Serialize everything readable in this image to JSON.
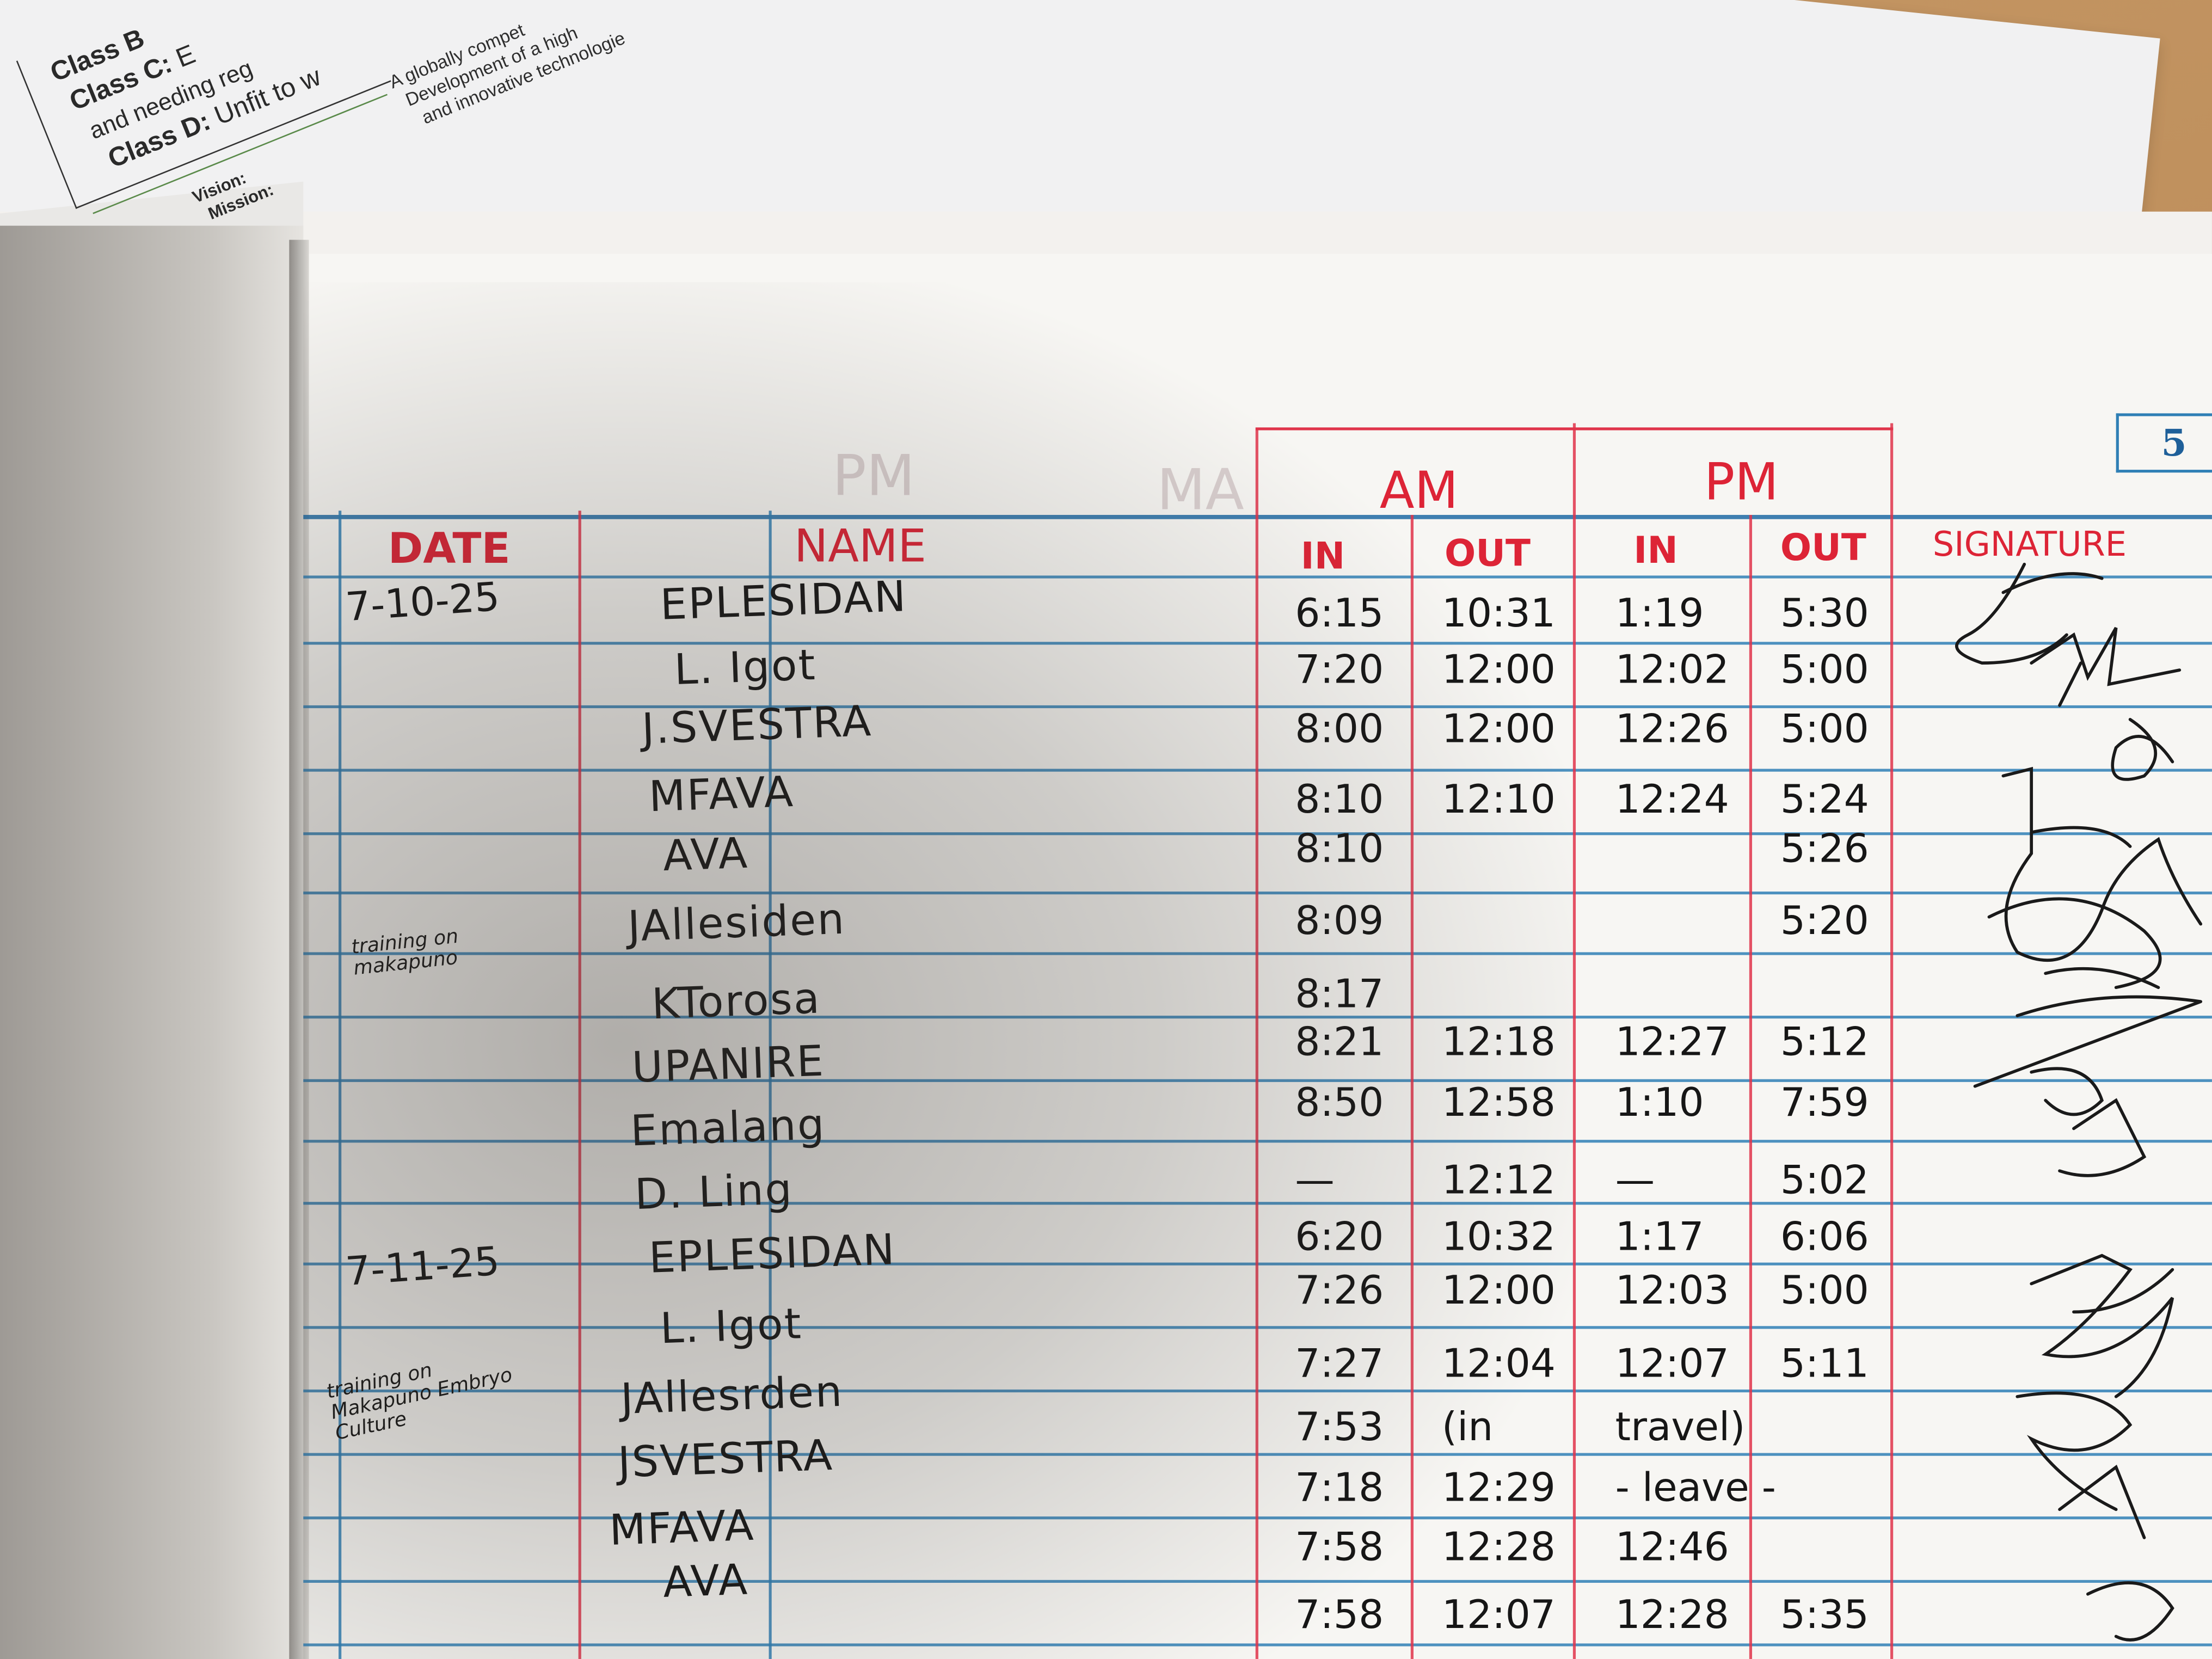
{
  "printed_sheet": {
    "lines": [
      {
        "label": "Class B",
        "text": ""
      },
      {
        "label": "Class C:",
        "text": "E"
      },
      {
        "label": "",
        "text": "and needing reg"
      },
      {
        "label": "Class D:",
        "text": "Unfit to w"
      }
    ],
    "vision_label": "Vision:",
    "mission_label": "Mission:",
    "statement_lines": [
      "A globally compet",
      "Development of a high",
      "and innovative technologie"
    ]
  },
  "logbook": {
    "page_number": "5",
    "headers": {
      "date": "DATE",
      "name": "NAME",
      "am": "AM",
      "pm": "PM",
      "am_in": "IN",
      "am_out": "OUT",
      "pm_in": "IN",
      "pm_out": "OUT",
      "signature": "SIGNATURE"
    },
    "colors": {
      "ruling_blue": "#2f7fb5",
      "header_red": "#dd2436",
      "ink": "#161616"
    },
    "rows": [
      {
        "date": "7-10-25",
        "name": "EPLESIDAN",
        "am_in": "6:15",
        "am_out": "10:31",
        "pm_in": "1:19",
        "pm_out": "5:30",
        "note": ""
      },
      {
        "date": "",
        "name": "L. Igot",
        "am_in": "7:20",
        "am_out": "12:00",
        "pm_in": "12:02",
        "pm_out": "5:00",
        "note": ""
      },
      {
        "date": "",
        "name": "J.SVESTRA",
        "am_in": "8:00",
        "am_out": "12:00",
        "pm_in": "12:26",
        "pm_out": "5:00",
        "note": ""
      },
      {
        "date": "",
        "name": "MFAVA",
        "am_in": "8:10",
        "am_out": "12:10",
        "pm_in": "12:24",
        "pm_out": "5:24",
        "note": ""
      },
      {
        "date": "",
        "name": "AVA",
        "am_in": "8:10",
        "am_out": "",
        "pm_in": "",
        "pm_out": "5:26",
        "note": ""
      },
      {
        "date": "",
        "name": "JAllesiden",
        "am_in": "8:09",
        "am_out": "",
        "pm_in": "",
        "pm_out": "5:20",
        "note": "training on makapuno"
      },
      {
        "date": "",
        "name": "KTorosa",
        "am_in": "8:17",
        "am_out": "",
        "pm_in": "",
        "pm_out": "",
        "note": ""
      },
      {
        "date": "",
        "name": "UPANIRE",
        "am_in": "8:21",
        "am_out": "12:18",
        "pm_in": "12:27",
        "pm_out": "5:12",
        "note": ""
      },
      {
        "date": "",
        "name": "Emalang",
        "am_in": "8:50",
        "am_out": "12:58",
        "pm_in": "1:10",
        "pm_out": "7:59",
        "note": ""
      },
      {
        "date": "",
        "name": "D. Ling",
        "am_in": "—",
        "am_out": "12:12",
        "pm_in": "—",
        "pm_out": "5:02",
        "note": ""
      },
      {
        "date": "7-11-25",
        "name": "EPLESIDAN",
        "am_in": "6:20",
        "am_out": "10:32",
        "pm_in": "1:17",
        "pm_out": "6:06",
        "note": ""
      },
      {
        "date": "",
        "name": "L. Igot",
        "am_in": "7:26",
        "am_out": "12:00",
        "pm_in": "12:03",
        "pm_out": "5:00",
        "note": ""
      },
      {
        "date": "",
        "name": "JAllesrden",
        "am_in": "7:27",
        "am_out": "12:04",
        "pm_in": "12:07",
        "pm_out": "5:11",
        "note": "training on Makapuno Embryo Culture"
      },
      {
        "date": "",
        "name": "JSVESTRA",
        "am_in": "7:53",
        "am_out": "(in",
        "pm_in": "travel)",
        "pm_out": "",
        "note": ""
      },
      {
        "date": "",
        "name": "",
        "am_in": "7:18",
        "am_out": "12:29",
        "pm_in": "- leave -",
        "pm_out": "",
        "note": ""
      },
      {
        "date": "",
        "name": "MFAVA",
        "am_in": "7:58",
        "am_out": "12:28",
        "pm_in": "12:46",
        "pm_out": "",
        "note": ""
      },
      {
        "date": "",
        "name": "AVA",
        "am_in": "7:58",
        "am_out": "12:07",
        "pm_in": "12:28",
        "pm_out": "5:35",
        "note": ""
      }
    ]
  }
}
